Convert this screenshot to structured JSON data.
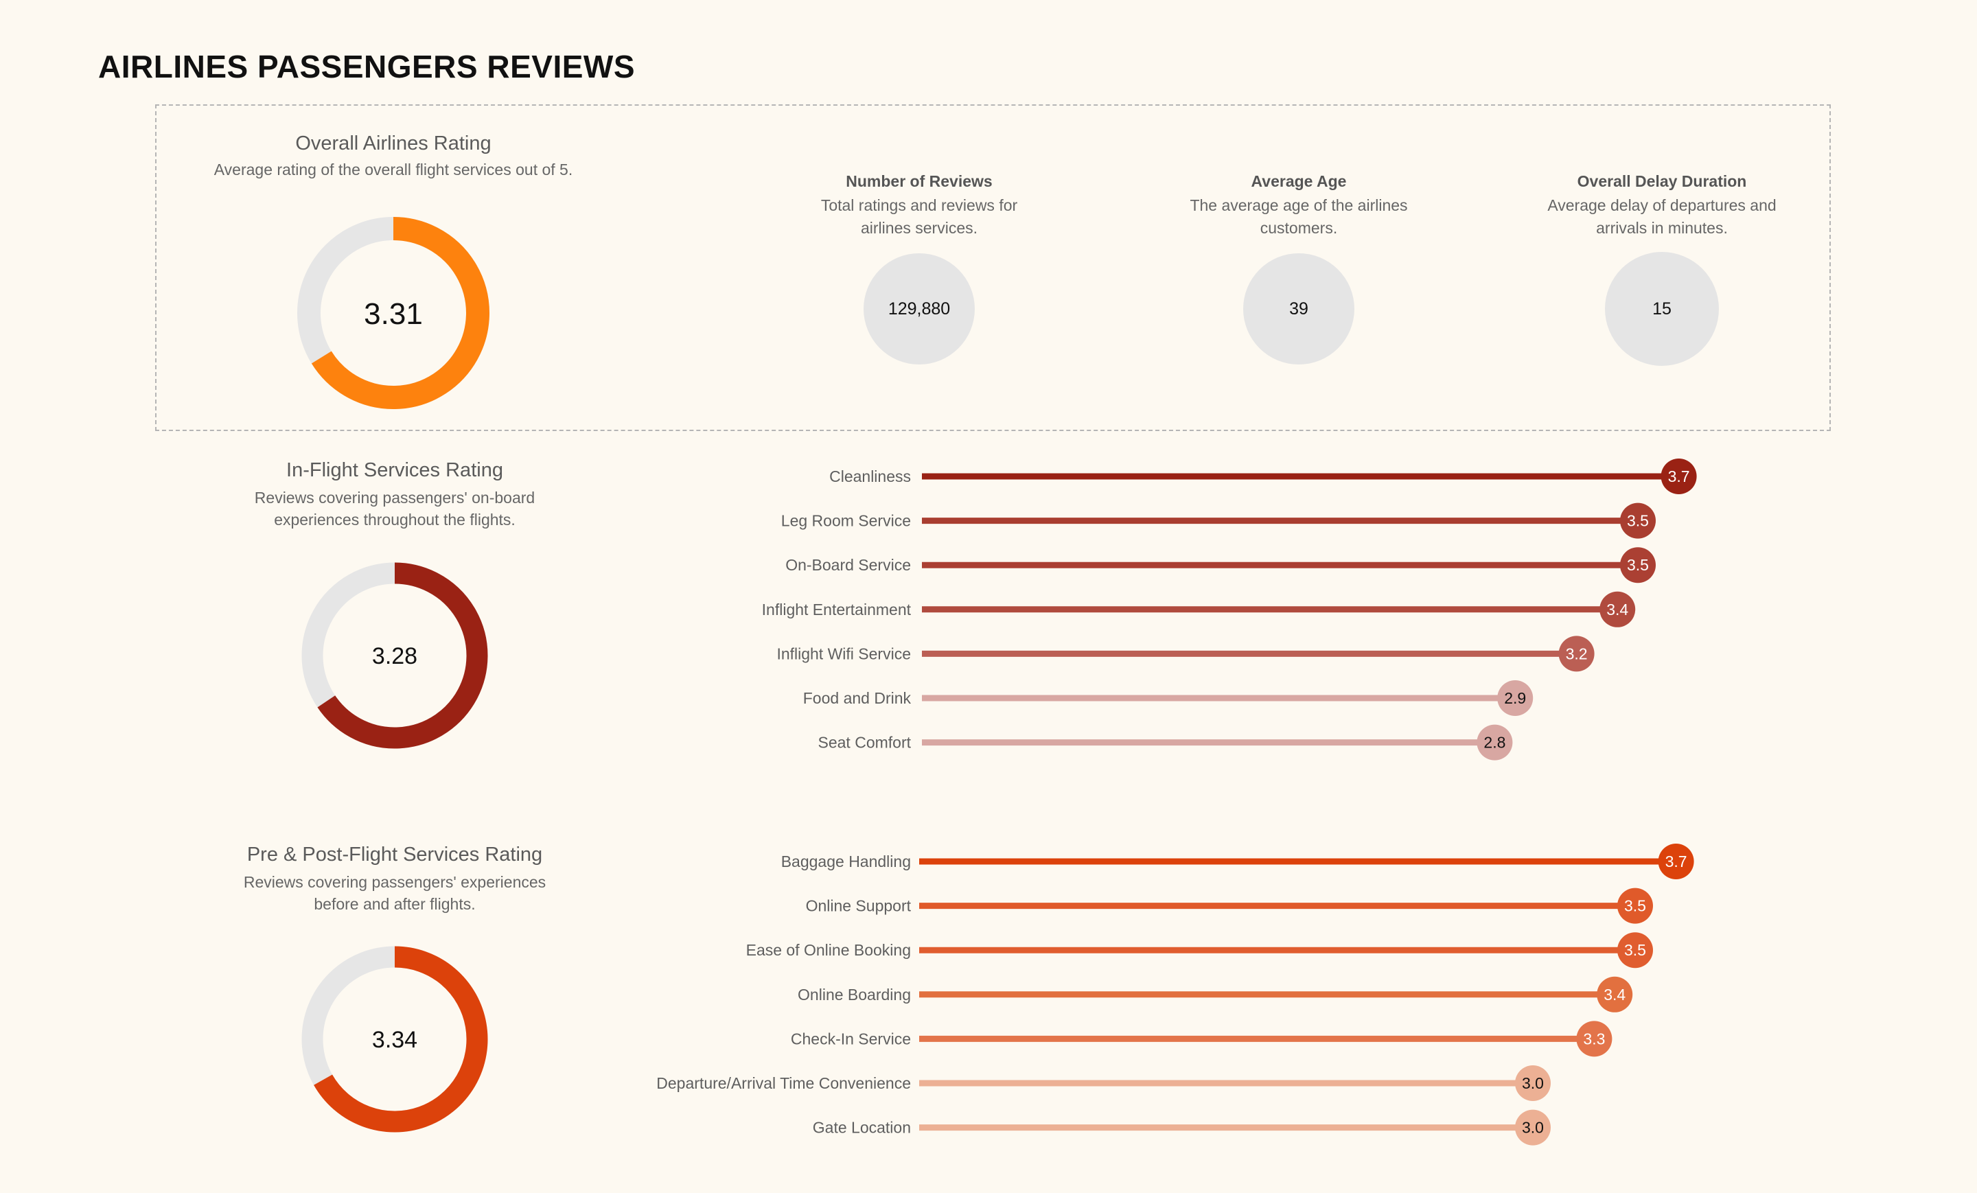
{
  "header": {
    "title": "AIRLINES PASSENGERS REVIEWS"
  },
  "overall": {
    "title": "Overall Airlines Rating",
    "description": "Average rating of the overall flight services out of 5.",
    "value": 3.31,
    "value_label": "3.31",
    "max": 5,
    "color": "#fd820e",
    "track_color": "#e6e6e6"
  },
  "kpis": [
    {
      "title": "Number of Reviews",
      "description_lines": [
        "Total ratings and reviews for",
        "airlines services."
      ],
      "value": "129,880"
    },
    {
      "title": "Average Age",
      "description_lines": [
        "The average age of the airlines",
        "customers."
      ],
      "value": "39"
    },
    {
      "title": "Overall Delay Duration",
      "description_lines": [
        "Average delay of departures and",
        "arrivals in minutes."
      ],
      "value": "15"
    }
  ],
  "chart_data": [
    {
      "type": "lollipop",
      "title": "In-Flight Services Rating",
      "description_lines": [
        "Reviews covering passengers' on-board",
        "experiences throughout the flights."
      ],
      "overall_value": 3.28,
      "overall_label": "3.28",
      "max": 5,
      "overall_color": "#9a2214",
      "categories": [
        "Cleanliness",
        "Leg Room Service",
        "On-Board Service",
        "Inflight Entertainment",
        "Inflight Wifi Service",
        "Food and Drink",
        "Seat Comfort"
      ],
      "values": [
        3.7,
        3.5,
        3.5,
        3.4,
        3.2,
        2.9,
        2.8
      ],
      "labels": [
        "3.7",
        "3.5",
        "3.5",
        "3.4",
        "3.2",
        "2.9",
        "2.8"
      ],
      "colors": [
        "#9a2214",
        "#a93e30",
        "#ab4033",
        "#b04b3e",
        "#bb5f54",
        "#d8a7a2",
        "#d8a7a2"
      ],
      "label_colors": [
        "#ffffff",
        "#ffffff",
        "#ffffff",
        "#ffffff",
        "#ffffff",
        "#111111",
        "#111111"
      ]
    },
    {
      "type": "lollipop",
      "title": "Pre & Post-Flight Services Rating",
      "description_lines": [
        "Reviews covering passengers' experiences",
        "before and after flights."
      ],
      "overall_value": 3.34,
      "overall_label": "3.34",
      "max": 5,
      "overall_color": "#dc420b",
      "categories": [
        "Baggage Handling",
        "Online Support",
        "Ease of Online Booking",
        "Online Boarding",
        "Check-In Service",
        "Departure/Arrival Time Convenience",
        "Gate Location"
      ],
      "values": [
        3.7,
        3.5,
        3.5,
        3.4,
        3.3,
        3.0,
        3.0
      ],
      "labels": [
        "3.7",
        "3.5",
        "3.5",
        "3.4",
        "3.3",
        "3.0",
        "3.0"
      ],
      "colors": [
        "#dc420b",
        "#e05a2a",
        "#e05d2f",
        "#e2703f",
        "#e3744a",
        "#ecb094",
        "#ecb094"
      ],
      "label_colors": [
        "#ffffff",
        "#ffffff",
        "#ffffff",
        "#ffffff",
        "#ffffff",
        "#111111",
        "#111111"
      ]
    }
  ]
}
